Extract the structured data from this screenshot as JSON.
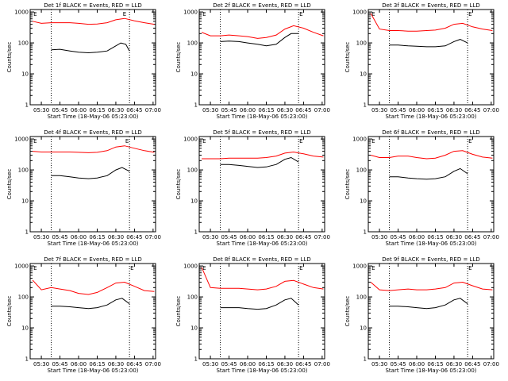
{
  "page": {
    "background": "#ffffff",
    "colors": {
      "axis": "#000000",
      "black_series": "#000000",
      "red_series": "#ff0000"
    }
  },
  "chart_data": [
    {
      "type": "line",
      "title": "Det 1f BLACK = Events, RED = LLD",
      "xlabel": "Start Time (18-May-06 05:23:00)",
      "ylabel": "Counts/sec",
      "x_ticks": [
        "05:30",
        "05:45",
        "06:00",
        "06:15",
        "06:30",
        "06:45",
        "07:00"
      ],
      "y_ticks": [
        "1",
        "10",
        "100",
        "1000"
      ],
      "yscale": "log",
      "ylim": [
        1,
        1200
      ],
      "markers": [
        {
          "time": "05:23",
          "label": "E"
        },
        {
          "time": "06:35",
          "label": "E"
        }
      ],
      "dotted_verticals": [
        "05:38",
        "06:41"
      ],
      "series": [
        {
          "name": "BLACK",
          "color": "#000000",
          "x": [
            "05:38",
            "05:45",
            "05:53",
            "06:00",
            "06:08",
            "06:15",
            "06:23",
            "06:30",
            "06:34",
            "06:38",
            "06:41"
          ],
          "y": [
            60,
            62,
            55,
            50,
            48,
            50,
            55,
            80,
            100,
            90,
            55
          ]
        },
        {
          "name": "RED",
          "color": "#ff0000",
          "x": [
            "05:23",
            "05:30",
            "05:38",
            "05:45",
            "05:53",
            "06:00",
            "06:08",
            "06:15",
            "06:23",
            "06:30",
            "06:37",
            "06:45",
            "06:53",
            "07:01"
          ],
          "y": [
            500,
            430,
            450,
            450,
            450,
            430,
            400,
            410,
            450,
            560,
            620,
            520,
            450,
            400
          ]
        }
      ]
    },
    {
      "type": "line",
      "title": "Det 2f BLACK = Events, RED = LLD",
      "xlabel": "Start Time (18-May-06 05:23:00)",
      "ylabel": "Counts/sec",
      "x_ticks": [
        "05:30",
        "05:45",
        "06:00",
        "06:15",
        "06:30",
        "06:45",
        "07:00"
      ],
      "y_ticks": [
        "1",
        "10",
        "100",
        "1000"
      ],
      "yscale": "log",
      "ylim": [
        1,
        1200
      ],
      "markers": [
        {
          "time": "05:23",
          "label": "E"
        },
        {
          "time": "06:41",
          "label": "E"
        }
      ],
      "dotted_verticals": [
        "05:38",
        "06:41"
      ],
      "series": [
        {
          "name": "BLACK",
          "color": "#000000",
          "x": [
            "05:38",
            "05:45",
            "05:53",
            "06:00",
            "06:08",
            "06:15",
            "06:23",
            "06:30",
            "06:35",
            "06:41"
          ],
          "y": [
            110,
            115,
            110,
            100,
            90,
            80,
            90,
            150,
            200,
            200
          ]
        },
        {
          "name": "RED",
          "color": "#ff0000",
          "x": [
            "05:23",
            "05:30",
            "05:38",
            "05:45",
            "05:53",
            "06:00",
            "06:08",
            "06:15",
            "06:23",
            "06:30",
            "06:37",
            "06:45",
            "06:53",
            "07:01"
          ],
          "y": [
            220,
            170,
            170,
            180,
            170,
            160,
            140,
            150,
            180,
            280,
            360,
            300,
            220,
            170
          ]
        }
      ]
    },
    {
      "type": "line",
      "title": "Det 3f BLACK = Events, RED = LLD",
      "xlabel": "Start Time (18-May-06 05:23:00)",
      "ylabel": "Counts/sec",
      "x_ticks": [
        "05:30",
        "05:45",
        "06:00",
        "06:15",
        "06:30",
        "06:45",
        "07:00"
      ],
      "y_ticks": [
        "1",
        "10",
        "100",
        "1000"
      ],
      "yscale": "log",
      "ylim": [
        1,
        1200
      ],
      "markers": [
        {
          "time": "05:23",
          "label": "E"
        },
        {
          "time": "06:41",
          "label": "E"
        }
      ],
      "dotted_verticals": [
        "05:38",
        "06:41"
      ],
      "series": [
        {
          "name": "BLACK",
          "color": "#000000",
          "x": [
            "05:38",
            "05:45",
            "05:53",
            "06:00",
            "06:08",
            "06:15",
            "06:23",
            "06:30",
            "06:35",
            "06:41"
          ],
          "y": [
            85,
            85,
            80,
            78,
            75,
            75,
            80,
            110,
            130,
            100
          ]
        },
        {
          "name": "RED",
          "color": "#ff0000",
          "x": [
            "05:23",
            "05:30",
            "05:38",
            "05:45",
            "05:53",
            "06:00",
            "06:08",
            "06:15",
            "06:23",
            "06:30",
            "06:37",
            "06:45",
            "06:53",
            "07:01"
          ],
          "y": [
            900,
            280,
            250,
            250,
            240,
            240,
            250,
            260,
            300,
            400,
            430,
            330,
            280,
            250
          ]
        }
      ]
    },
    {
      "type": "line",
      "title": "Det 4f BLACK = Events, RED = LLD",
      "xlabel": "Start Time (18-May-06 05:23:00)",
      "ylabel": "Counts/sec",
      "x_ticks": [
        "05:30",
        "05:45",
        "06:00",
        "06:15",
        "06:30",
        "06:45",
        "07:00"
      ],
      "y_ticks": [
        "1",
        "10",
        "100",
        "1000"
      ],
      "yscale": "log",
      "ylim": [
        1,
        1200
      ],
      "markers": [
        {
          "time": "05:23",
          "label": "E"
        },
        {
          "time": "06:37",
          "label": "E"
        }
      ],
      "dotted_verticals": [
        "05:38",
        "06:41"
      ],
      "series": [
        {
          "name": "BLACK",
          "color": "#000000",
          "x": [
            "05:38",
            "05:45",
            "05:53",
            "06:00",
            "06:08",
            "06:15",
            "06:23",
            "06:30",
            "06:35",
            "06:41"
          ],
          "y": [
            65,
            65,
            60,
            55,
            52,
            55,
            65,
            100,
            120,
            90
          ]
        },
        {
          "name": "RED",
          "color": "#ff0000",
          "x": [
            "05:23",
            "05:30",
            "05:38",
            "05:45",
            "05:53",
            "06:00",
            "06:08",
            "06:15",
            "06:23",
            "06:30",
            "06:37",
            "06:45",
            "06:53",
            "07:01"
          ],
          "y": [
            400,
            380,
            380,
            380,
            380,
            370,
            360,
            370,
            420,
            550,
            600,
            500,
            420,
            370
          ]
        }
      ]
    },
    {
      "type": "line",
      "title": "Det 5f BLACK = Events, RED = LLD",
      "xlabel": "Start Time (18-May-06 05:23:00)",
      "ylabel": "Counts/sec",
      "x_ticks": [
        "05:30",
        "05:45",
        "06:00",
        "06:15",
        "06:30",
        "06:45",
        "07:00"
      ],
      "y_ticks": [
        "1",
        "10",
        "100",
        "1000"
      ],
      "yscale": "log",
      "ylim": [
        1,
        1200
      ],
      "markers": [
        {
          "time": "05:23",
          "label": "E"
        },
        {
          "time": "06:41",
          "label": "E"
        }
      ],
      "dotted_verticals": [
        "05:38",
        "06:41"
      ],
      "series": [
        {
          "name": "BLACK",
          "color": "#000000",
          "x": [
            "05:38",
            "05:45",
            "05:53",
            "06:00",
            "06:08",
            "06:15",
            "06:23",
            "06:30",
            "06:35",
            "06:41"
          ],
          "y": [
            150,
            150,
            140,
            130,
            120,
            125,
            150,
            220,
            250,
            180
          ]
        },
        {
          "name": "RED",
          "color": "#ff0000",
          "x": [
            "05:23",
            "05:30",
            "05:38",
            "05:45",
            "05:53",
            "06:00",
            "06:08",
            "06:15",
            "06:23",
            "06:30",
            "06:37",
            "06:45",
            "06:53",
            "07:01"
          ],
          "y": [
            230,
            230,
            230,
            240,
            240,
            240,
            240,
            250,
            280,
            350,
            380,
            330,
            280,
            260
          ]
        }
      ]
    },
    {
      "type": "line",
      "title": "Det 6f BLACK = Events, RED = LLD",
      "xlabel": "Start Time (18-May-06 05:23:00)",
      "ylabel": "Counts/sec",
      "x_ticks": [
        "05:30",
        "05:45",
        "06:00",
        "06:15",
        "06:30",
        "06:45",
        "07:00"
      ],
      "y_ticks": [
        "1",
        "10",
        "100",
        "1000"
      ],
      "yscale": "log",
      "ylim": [
        1,
        1200
      ],
      "markers": [
        {
          "time": "05:23",
          "label": "E"
        },
        {
          "time": "06:41",
          "label": "E"
        }
      ],
      "dotted_verticals": [
        "05:38",
        "06:41"
      ],
      "series": [
        {
          "name": "BLACK",
          "color": "#000000",
          "x": [
            "05:38",
            "05:45",
            "05:53",
            "06:00",
            "06:08",
            "06:15",
            "06:23",
            "06:30",
            "06:35",
            "06:41"
          ],
          "y": [
            60,
            60,
            55,
            52,
            50,
            52,
            60,
            90,
            110,
            75
          ]
        },
        {
          "name": "RED",
          "color": "#ff0000",
          "x": [
            "05:23",
            "05:30",
            "05:38",
            "05:45",
            "05:53",
            "06:00",
            "06:08",
            "06:15",
            "06:23",
            "06:30",
            "06:37",
            "06:45",
            "06:53",
            "07:01"
          ],
          "y": [
            300,
            250,
            250,
            280,
            280,
            250,
            230,
            240,
            300,
            400,
            420,
            320,
            260,
            240
          ]
        }
      ]
    },
    {
      "type": "line",
      "title": "Det 7f BLACK = Events, RED = LLD",
      "xlabel": "Start Time (18-May-06 05:23:00)",
      "ylabel": "Counts/sec",
      "x_ticks": [
        "05:30",
        "05:45",
        "06:00",
        "06:15",
        "06:30",
        "06:45",
        "07:00"
      ],
      "y_ticks": [
        "1",
        "10",
        "100",
        "1000"
      ],
      "yscale": "log",
      "ylim": [
        1,
        1200
      ],
      "markers": [
        {
          "time": "05:23",
          "label": "E"
        },
        {
          "time": "06:41",
          "label": "E"
        }
      ],
      "dotted_verticals": [
        "05:38",
        "06:41"
      ],
      "series": [
        {
          "name": "BLACK",
          "color": "#000000",
          "x": [
            "05:38",
            "05:45",
            "05:53",
            "06:00",
            "06:08",
            "06:15",
            "06:23",
            "06:30",
            "06:35",
            "06:41"
          ],
          "y": [
            50,
            50,
            48,
            45,
            42,
            45,
            55,
            80,
            90,
            60
          ]
        },
        {
          "name": "RED",
          "color": "#ff0000",
          "x": [
            "05:23",
            "05:30",
            "05:38",
            "05:45",
            "05:53",
            "06:00",
            "06:08",
            "06:15",
            "06:23",
            "06:30",
            "06:37",
            "06:45",
            "06:53",
            "07:01"
          ],
          "y": [
            350,
            170,
            200,
            180,
            160,
            130,
            120,
            140,
            200,
            280,
            300,
            220,
            160,
            150
          ]
        }
      ]
    },
    {
      "type": "line",
      "title": "Det 8f BLACK = Events, RED = LLD",
      "xlabel": "Start Time (18-May-06 05:23:00)",
      "ylabel": "Counts/sec",
      "x_ticks": [
        "05:30",
        "05:45",
        "06:00",
        "06:15",
        "06:30",
        "06:45",
        "07:00"
      ],
      "y_ticks": [
        "1",
        "10",
        "100",
        "1000"
      ],
      "yscale": "log",
      "ylim": [
        1,
        1200
      ],
      "markers": [
        {
          "time": "05:23",
          "label": "E"
        },
        {
          "time": "06:41",
          "label": "E"
        }
      ],
      "dotted_verticals": [
        "05:38",
        "06:41"
      ],
      "series": [
        {
          "name": "BLACK",
          "color": "#000000",
          "x": [
            "05:38",
            "05:45",
            "05:53",
            "06:00",
            "06:08",
            "06:15",
            "06:23",
            "06:30",
            "06:35",
            "06:41"
          ],
          "y": [
            45,
            45,
            45,
            42,
            40,
            42,
            55,
            80,
            90,
            55
          ]
        },
        {
          "name": "RED",
          "color": "#ff0000",
          "x": [
            "05:23",
            "05:30",
            "05:38",
            "05:45",
            "05:53",
            "06:00",
            "06:08",
            "06:15",
            "06:23",
            "06:30",
            "06:37",
            "06:45",
            "06:53",
            "07:01"
          ],
          "y": [
            900,
            200,
            190,
            190,
            190,
            180,
            170,
            180,
            220,
            320,
            340,
            260,
            200,
            180
          ]
        }
      ]
    },
    {
      "type": "line",
      "title": "Det 9f BLACK = Events, RED = LLD",
      "xlabel": "Start Time (18-May-06 05:23:00)",
      "ylabel": "Counts/sec",
      "x_ticks": [
        "05:30",
        "05:45",
        "06:00",
        "06:15",
        "06:30",
        "06:45",
        "07:00"
      ],
      "y_ticks": [
        "1",
        "10",
        "100",
        "1000"
      ],
      "yscale": "log",
      "ylim": [
        1,
        1200
      ],
      "markers": [
        {
          "time": "05:23",
          "label": "E"
        },
        {
          "time": "06:41",
          "label": "E"
        }
      ],
      "dotted_verticals": [
        "05:38",
        "06:41"
      ],
      "series": [
        {
          "name": "BLACK",
          "color": "#000000",
          "x": [
            "05:38",
            "05:45",
            "05:53",
            "06:00",
            "06:08",
            "06:15",
            "06:23",
            "06:30",
            "06:35",
            "06:41"
          ],
          "y": [
            50,
            50,
            48,
            45,
            42,
            45,
            55,
            80,
            90,
            60
          ]
        },
        {
          "name": "RED",
          "color": "#ff0000",
          "x": [
            "05:23",
            "05:30",
            "05:38",
            "05:45",
            "05:53",
            "06:00",
            "06:08",
            "06:15",
            "06:23",
            "06:30",
            "06:37",
            "06:45",
            "06:53",
            "07:01"
          ],
          "y": [
            300,
            170,
            160,
            170,
            180,
            170,
            170,
            180,
            200,
            280,
            300,
            230,
            180,
            170
          ]
        }
      ]
    }
  ]
}
